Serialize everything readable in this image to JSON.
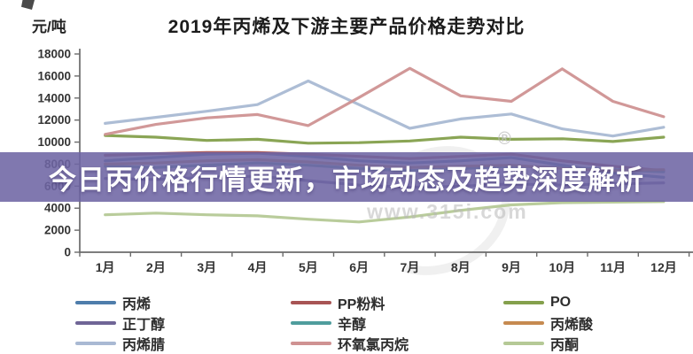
{
  "page": {
    "banner_text": "今日丙价格行情更新，市场动态及趋势深度解析",
    "watermark_url": "www.315i.com",
    "registered_mark": "®"
  },
  "chart_data": {
    "type": "line",
    "title": "2019年丙烯及下游主要产品价格走势对比",
    "ylabel_unit": "元/吨",
    "xlabel": "",
    "categories": [
      "1月",
      "2月",
      "3月",
      "4月",
      "5月",
      "6月",
      "7月",
      "8月",
      "9月",
      "10月",
      "11月",
      "12月"
    ],
    "y_ticks": [
      0,
      2000,
      4000,
      6000,
      8000,
      10000,
      12000,
      14000,
      16000,
      18000
    ],
    "ylim": [
      0,
      18000
    ],
    "grid": false,
    "legend_position": "bottom",
    "note": "series with values between ~4600 and ~9100 are partially obscured by the overlay banner; their values are approximate",
    "series": [
      {
        "name": "丙烯",
        "color": "#4e7dab",
        "values": [
          8300,
          8600,
          8900,
          9000,
          8700,
          8300,
          8100,
          8300,
          8600,
          7900,
          7200,
          6800
        ]
      },
      {
        "name": "PP粉料",
        "color": "#a85454",
        "values": [
          8800,
          8950,
          9050,
          9050,
          8900,
          8700,
          8500,
          8700,
          8900,
          8300,
          7800,
          7400
        ]
      },
      {
        "name": "PO",
        "color": "#84a04c",
        "values": [
          10600,
          10450,
          10150,
          10250,
          9900,
          9950,
          10100,
          10450,
          10250,
          10300,
          10050,
          10450
        ]
      },
      {
        "name": "正丁醇",
        "color": "#6f6596",
        "values": [
          6700,
          6600,
          6800,
          6900,
          6500,
          6100,
          5900,
          6000,
          6200,
          6100,
          6200,
          6300
        ]
      },
      {
        "name": "辛醇",
        "color": "#4f9d9d",
        "values": [
          7800,
          7700,
          7900,
          8100,
          7900,
          7600,
          7400,
          7600,
          7800,
          7700,
          7500,
          7300
        ]
      },
      {
        "name": "丙烯酸",
        "color": "#c68a50",
        "values": [
          8000,
          8100,
          8300,
          8400,
          8200,
          7900,
          7700,
          7800,
          7900,
          7600,
          7400,
          7500
        ]
      },
      {
        "name": "丙烯腈",
        "color": "#a9b9d3",
        "values": [
          11700,
          12250,
          12800,
          13400,
          15550,
          13400,
          11250,
          12100,
          12550,
          11200,
          10550,
          11350
        ]
      },
      {
        "name": "环氧氯丙烷",
        "color": "#cf9292",
        "values": [
          10700,
          11600,
          12200,
          12500,
          11500,
          14050,
          16700,
          14200,
          13700,
          16650,
          13700,
          12300
        ]
      },
      {
        "name": "丙酮",
        "color": "#b5c996",
        "values": [
          3400,
          3550,
          3400,
          3300,
          3000,
          2750,
          3200,
          3800,
          4300,
          4500,
          4550,
          4600
        ]
      }
    ]
  }
}
